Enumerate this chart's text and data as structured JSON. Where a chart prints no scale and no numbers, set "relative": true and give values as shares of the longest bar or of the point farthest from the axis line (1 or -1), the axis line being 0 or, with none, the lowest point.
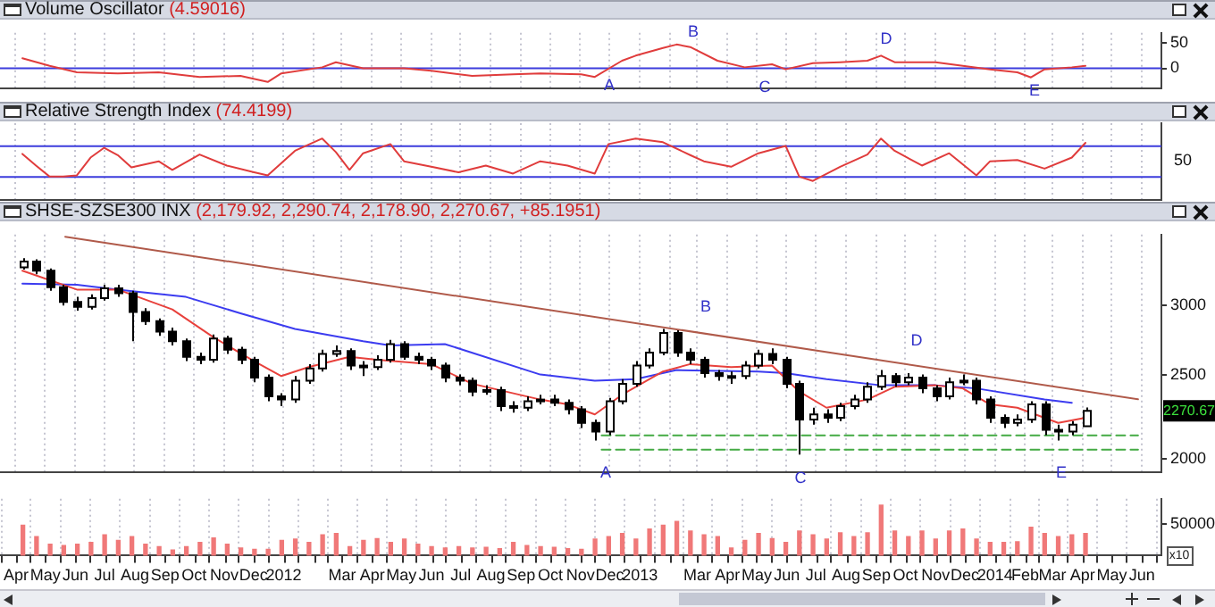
{
  "chart_data": [
    {
      "type": "line",
      "title": "Volume Oscillator",
      "subtitle": "(4.59016)",
      "color": "#e03c3c",
      "x": [
        "2011-04-08",
        "2011-05-06",
        "2011-06-03",
        "2011-07-15",
        "2011-08-26",
        "2011-10-07",
        "2011-11-18",
        "2011-12-16",
        "2011-12-30",
        "2012-02-10",
        "2012-02-24",
        "2012-03-23",
        "2012-05-04",
        "2012-06-01",
        "2012-07-13",
        "2012-08-24",
        "2012-09-21",
        "2012-11-02",
        "2012-11-16",
        "2012-12-14",
        "2012-12-28",
        "2013-01-25",
        "2013-02-08",
        "2013-02-22",
        "2013-03-22",
        "2013-04-19",
        "2013-05-17",
        "2013-05-31",
        "2013-06-28",
        "2013-07-26",
        "2013-08-23",
        "2013-09-06",
        "2013-09-20",
        "2013-11-01",
        "2013-11-29",
        "2013-12-27",
        "2014-01-24",
        "2014-02-07",
        "2014-02-21",
        "2014-03-21",
        "2014-04-04"
      ],
      "values": [
        20,
        5,
        -8,
        -10,
        -8,
        -17,
        -15,
        -27,
        -10,
        2,
        12,
        0,
        0,
        -5,
        -15,
        -12,
        -10,
        -12,
        -17,
        15,
        25,
        40,
        47,
        42,
        15,
        2,
        8,
        -2,
        10,
        12,
        15,
        25,
        12,
        12,
        5,
        -2,
        -8,
        -18,
        -2,
        2,
        5
      ],
      "xlim": [
        "2011-03-16",
        "2014-06-21"
      ],
      "xticks": [
        "2011-04-01",
        "2011-05-01",
        "2011-06-01",
        "2011-07-01",
        "2011-08-01",
        "2011-09-01",
        "2011-10-01",
        "2011-11-01",
        "2011-12-01",
        "2012-01-01",
        "2012-02-01",
        "2012-03-01",
        "2012-04-01",
        "2012-05-01",
        "2012-06-01",
        "2012-07-01",
        "2012-08-01",
        "2012-09-01",
        "2012-10-01",
        "2012-11-01",
        "2012-12-01",
        "2013-01-01",
        "2013-02-01",
        "2013-03-01",
        "2013-04-01",
        "2013-05-01",
        "2013-06-01",
        "2013-07-01",
        "2013-08-01",
        "2013-09-01",
        "2013-10-01",
        "2013-11-01",
        "2013-12-01",
        "2014-01-01",
        "2014-02-01",
        "2014-03-01",
        "2014-04-01",
        "2014-05-01",
        "2014-06-01"
      ],
      "ylim": [
        -40,
        70
      ],
      "yticks": [
        0,
        50
      ],
      "grid": "x",
      "tick_labels": "y",
      "ref_lines": [
        {
          "axis": "y",
          "value": 0,
          "color": "#3c3cdc"
        }
      ],
      "annotations": [
        "A",
        "B",
        "C",
        "D",
        "E"
      ]
    },
    {
      "type": "line",
      "title": "Relative Strength Index",
      "subtitle": "(74.4199)",
      "color": "#e03c3c",
      "relative": true,
      "x": [
        "2011-04-08",
        "2011-04-22",
        "2011-05-06",
        "2011-05-20",
        "2011-06-03",
        "2011-06-17",
        "2011-07-01",
        "2011-07-15",
        "2011-07-29",
        "2011-08-26",
        "2011-09-09",
        "2011-10-07",
        "2011-11-04",
        "2011-12-02",
        "2011-12-16",
        "2012-01-13",
        "2012-02-10",
        "2012-02-24",
        "2012-03-09",
        "2012-03-23",
        "2012-04-20",
        "2012-05-04",
        "2012-06-01",
        "2012-06-29",
        "2012-07-27",
        "2012-08-24",
        "2012-09-21",
        "2012-10-19",
        "2012-11-16",
        "2012-11-30",
        "2012-12-28",
        "2013-01-25",
        "2013-02-22",
        "2013-03-08",
        "2013-04-05",
        "2013-05-03",
        "2013-05-31",
        "2013-06-14",
        "2013-06-28",
        "2013-07-26",
        "2013-08-23",
        "2013-09-06",
        "2013-09-20",
        "2013-10-18",
        "2013-11-15",
        "2013-12-13",
        "2013-12-27",
        "2014-01-24",
        "2014-02-21",
        "2014-03-21",
        "2014-04-04"
      ],
      "values": [
        0.75,
        0.56,
        0.38,
        0.38,
        0.4,
        0.69,
        0.85,
        0.73,
        0.53,
        0.63,
        0.49,
        0.74,
        0.56,
        0.45,
        0.4,
        0.8,
        1,
        0.78,
        0.49,
        0.76,
        0.91,
        0.63,
        0.54,
        0.45,
        0.56,
        0.43,
        0.63,
        0.56,
        0.43,
        0.91,
        1,
        0.94,
        0.73,
        0.63,
        0.54,
        0.76,
        0.88,
        0.38,
        0.31,
        0.54,
        0.74,
        1,
        0.8,
        0.56,
        0.76,
        0.4,
        0.63,
        0.65,
        0.51,
        0.69,
        0.93
      ],
      "xlim": [
        "2011-03-16",
        "2014-06-21"
      ],
      "xticks": [
        "2011-04-01",
        "2011-05-01",
        "2011-06-01",
        "2011-07-01",
        "2011-08-01",
        "2011-09-01",
        "2011-10-01",
        "2011-11-01",
        "2011-12-01",
        "2012-01-01",
        "2012-02-01",
        "2012-03-01",
        "2012-04-01",
        "2012-05-01",
        "2012-06-01",
        "2012-07-01",
        "2012-08-01",
        "2012-09-01",
        "2012-10-01",
        "2012-11-01",
        "2012-12-01",
        "2013-01-01",
        "2013-02-01",
        "2013-03-01",
        "2013-04-01",
        "2013-05-01",
        "2013-06-01",
        "2013-07-01",
        "2013-08-01",
        "2013-09-01",
        "2013-10-01",
        "2013-11-01",
        "2013-12-01",
        "2014-01-01",
        "2014-02-01",
        "2014-03-01",
        "2014-04-01",
        "2014-05-01",
        "2014-06-01"
      ],
      "grid": "x",
      "tick_labels": false,
      "ref_lines": [
        {
          "axis": "y",
          "value": 0.875,
          "color": "#3c3cdc"
        },
        {
          "axis": "y",
          "value": 0.375,
          "color": "#3c3cdc"
        }
      ],
      "annotations": [
        "50"
      ]
    },
    {
      "type": "candlestick",
      "title": "SHSE-SZSE300 INX",
      "subtitle": "(2,179.92, 2,290.74, 2,178.90, 2,270.67, +85.1951)",
      "x": [
        "2011-04-08",
        "2011-04-22",
        "2011-05-06",
        "2011-05-20",
        "2011-06-03",
        "2011-06-17",
        "2011-07-01",
        "2011-07-15",
        "2011-07-29",
        "2011-08-12",
        "2011-08-26",
        "2011-09-09",
        "2011-09-23",
        "2011-10-07",
        "2011-10-21",
        "2011-11-04",
        "2011-11-18",
        "2011-12-02",
        "2011-12-16",
        "2011-12-30",
        "2012-01-13",
        "2012-01-27",
        "2012-02-10",
        "2012-02-24",
        "2012-03-09",
        "2012-03-23",
        "2012-04-06",
        "2012-04-20",
        "2012-05-04",
        "2012-05-18",
        "2012-06-01",
        "2012-06-15",
        "2012-06-29",
        "2012-07-13",
        "2012-07-27",
        "2012-08-10",
        "2012-08-24",
        "2012-09-07",
        "2012-09-21",
        "2012-10-05",
        "2012-10-19",
        "2012-11-02",
        "2012-11-16",
        "2012-11-30",
        "2012-12-14",
        "2012-12-28",
        "2013-01-11",
        "2013-01-25",
        "2013-02-08",
        "2013-02-22",
        "2013-03-08",
        "2013-03-22",
        "2013-04-05",
        "2013-04-19",
        "2013-05-03",
        "2013-05-17",
        "2013-05-31",
        "2013-06-14",
        "2013-06-28",
        "2013-07-12",
        "2013-07-26",
        "2013-08-09",
        "2013-08-23",
        "2013-09-06",
        "2013-09-20",
        "2013-10-04",
        "2013-10-18",
        "2013-11-01",
        "2013-11-15",
        "2013-11-29",
        "2013-12-13",
        "2013-12-27",
        "2014-01-10",
        "2014-01-24",
        "2014-02-07",
        "2014-02-21",
        "2014-03-07",
        "2014-03-21",
        "2014-04-04"
      ],
      "ohlc": [
        [
          3320,
          3400,
          3300,
          3370
        ],
        [
          3370,
          3390,
          3260,
          3290
        ],
        [
          3290,
          3310,
          3120,
          3150
        ],
        [
          3150,
          3170,
          3000,
          3030
        ],
        [
          3030,
          3070,
          2960,
          2990
        ],
        [
          2990,
          3090,
          2970,
          3060
        ],
        [
          3060,
          3170,
          3040,
          3140
        ],
        [
          3140,
          3170,
          3070,
          3100
        ],
        [
          3100,
          3120,
          2730,
          2950
        ],
        [
          2950,
          2980,
          2850,
          2880
        ],
        [
          2880,
          2900,
          2770,
          2800
        ],
        [
          2800,
          2830,
          2700,
          2730
        ],
        [
          2730,
          2750,
          2590,
          2620
        ],
        [
          2620,
          2650,
          2570,
          2600
        ],
        [
          2600,
          2780,
          2580,
          2750
        ],
        [
          2750,
          2770,
          2640,
          2670
        ],
        [
          2670,
          2690,
          2570,
          2600
        ],
        [
          2600,
          2620,
          2450,
          2480
        ],
        [
          2480,
          2500,
          2330,
          2360
        ],
        [
          2360,
          2380,
          2300,
          2340
        ],
        [
          2340,
          2490,
          2320,
          2460
        ],
        [
          2460,
          2570,
          2440,
          2540
        ],
        [
          2540,
          2670,
          2520,
          2640
        ],
        [
          2640,
          2700,
          2620,
          2660
        ],
        [
          2660,
          2680,
          2530,
          2560
        ],
        [
          2560,
          2590,
          2490,
          2550
        ],
        [
          2550,
          2630,
          2530,
          2600
        ],
        [
          2600,
          2740,
          2580,
          2710
        ],
        [
          2710,
          2730,
          2600,
          2620
        ],
        [
          2620,
          2650,
          2570,
          2600
        ],
        [
          2600,
          2620,
          2530,
          2560
        ],
        [
          2560,
          2580,
          2450,
          2480
        ],
        [
          2480,
          2500,
          2430,
          2460
        ],
        [
          2460,
          2480,
          2360,
          2390
        ],
        [
          2390,
          2430,
          2370,
          2400
        ],
        [
          2400,
          2420,
          2270,
          2300
        ],
        [
          2300,
          2330,
          2260,
          2290
        ],
        [
          2290,
          2360,
          2270,
          2330
        ],
        [
          2330,
          2370,
          2310,
          2340
        ],
        [
          2340,
          2370,
          2300,
          2320
        ],
        [
          2320,
          2340,
          2250,
          2280
        ],
        [
          2280,
          2300,
          2170,
          2200
        ],
        [
          2200,
          2220,
          2100,
          2150
        ],
        [
          2150,
          2350,
          2130,
          2330
        ],
        [
          2330,
          2470,
          2310,
          2440
        ],
        [
          2440,
          2590,
          2420,
          2560
        ],
        [
          2560,
          2680,
          2540,
          2650
        ],
        [
          2650,
          2820,
          2630,
          2790
        ],
        [
          2790,
          2810,
          2620,
          2650
        ],
        [
          2650,
          2680,
          2570,
          2600
        ],
        [
          2600,
          2620,
          2480,
          2510
        ],
        [
          2510,
          2530,
          2460,
          2490
        ],
        [
          2490,
          2520,
          2440,
          2490
        ],
        [
          2490,
          2590,
          2470,
          2560
        ],
        [
          2560,
          2670,
          2540,
          2640
        ],
        [
          2640,
          2680,
          2570,
          2600
        ],
        [
          2600,
          2620,
          2410,
          2440
        ],
        [
          2440,
          2460,
          2023,
          2220
        ],
        [
          2220,
          2290,
          2190,
          2250
        ],
        [
          2250,
          2280,
          2200,
          2230
        ],
        [
          2230,
          2320,
          2210,
          2300
        ],
        [
          2300,
          2370,
          2280,
          2340
        ],
        [
          2340,
          2450,
          2320,
          2420
        ],
        [
          2420,
          2530,
          2400,
          2490
        ],
        [
          2490,
          2510,
          2420,
          2450
        ],
        [
          2450,
          2510,
          2430,
          2480
        ],
        [
          2480,
          2500,
          2380,
          2410
        ],
        [
          2410,
          2430,
          2330,
          2360
        ],
        [
          2360,
          2480,
          2340,
          2450
        ],
        [
          2450,
          2500,
          2430,
          2460
        ],
        [
          2460,
          2480,
          2310,
          2340
        ],
        [
          2340,
          2360,
          2200,
          2230
        ],
        [
          2230,
          2250,
          2170,
          2200
        ],
        [
          2200,
          2250,
          2180,
          2220
        ],
        [
          2220,
          2330,
          2200,
          2310
        ],
        [
          2310,
          2330,
          2130,
          2160
        ],
        [
          2160,
          2190,
          2100,
          2150
        ],
        [
          2150,
          2210,
          2130,
          2190
        ],
        [
          2179.92,
          2290.74,
          2178.9,
          2270.67
        ]
      ],
      "colors": [
        "#ffffff",
        "#000000",
        "#000000",
        "#000000",
        "#000000",
        "#ffffff",
        "#ffffff",
        "#000000",
        "#000000",
        "#000000",
        "#000000",
        "#000000",
        "#000000",
        "#000000",
        "#ffffff",
        "#000000",
        "#000000",
        "#000000",
        "#000000",
        "#000000",
        "#ffffff",
        "#ffffff",
        "#ffffff",
        "#ffffff",
        "#000000",
        "#000000",
        "#ffffff",
        "#ffffff",
        "#000000",
        "#000000",
        "#000000",
        "#000000",
        "#000000",
        "#000000",
        "#ffffff",
        "#000000",
        "#000000",
        "#ffffff",
        "#ffffff",
        "#000000",
        "#000000",
        "#000000",
        "#000000",
        "#ffffff",
        "#ffffff",
        "#ffffff",
        "#ffffff",
        "#ffffff",
        "#000000",
        "#000000",
        "#000000",
        "#000000",
        "#ffffff",
        "#ffffff",
        "#ffffff",
        "#000000",
        "#000000",
        "#000000",
        "#ffffff",
        "#000000",
        "#ffffff",
        "#ffffff",
        "#ffffff",
        "#ffffff",
        "#000000",
        "#ffffff",
        "#000000",
        "#000000",
        "#ffffff",
        "#ffffff",
        "#000000",
        "#000000",
        "#000000",
        "#ffffff",
        "#ffffff",
        "#000000",
        "#000000",
        "#ffffff",
        "#ffffff"
      ],
      "series": [
        {
          "type": "line",
          "color": "#e8413c",
          "x": [
            "2011-04-08",
            "2011-06-03",
            "2011-07-15",
            "2011-09-09",
            "2011-10-21",
            "2011-12-02",
            "2011-12-30",
            "2012-01-27",
            "2012-03-09",
            "2012-04-06",
            "2012-06-01",
            "2012-07-13",
            "2012-09-21",
            "2012-10-19",
            "2012-11-16",
            "2012-12-14",
            "2013-01-25",
            "2013-02-22",
            "2013-04-05",
            "2013-05-17",
            "2013-06-14",
            "2013-07-12",
            "2013-08-23",
            "2013-09-20",
            "2013-11-01",
            "2013-11-29",
            "2013-12-27",
            "2014-01-24",
            "2014-03-07",
            "2014-04-04"
          ],
          "values": [
            3290,
            3130,
            3130,
            2970,
            2760,
            2590,
            2490,
            2550,
            2620,
            2600,
            2570,
            2440,
            2340,
            2310,
            2250,
            2370,
            2520,
            2570,
            2550,
            2560,
            2390,
            2290,
            2340,
            2420,
            2430,
            2410,
            2310,
            2290,
            2200,
            2230
          ]
        },
        {
          "type": "line",
          "color": "#3c3cf0",
          "x": [
            "2011-04-08",
            "2011-06-03",
            "2011-07-15",
            "2011-09-23",
            "2011-11-18",
            "2012-01-13",
            "2012-03-23",
            "2012-04-20",
            "2012-06-15",
            "2012-09-21",
            "2012-11-16",
            "2012-12-28",
            "2013-02-08",
            "2013-05-03",
            "2013-05-31",
            "2013-07-12",
            "2013-09-06",
            "2013-11-01",
            "2013-12-13",
            "2014-02-21",
            "2014-03-21"
          ],
          "values": [
            3180,
            3170,
            3130,
            3070,
            2940,
            2820,
            2730,
            2700,
            2710,
            2500,
            2460,
            2470,
            2530,
            2520,
            2510,
            2470,
            2430,
            2430,
            2410,
            2340,
            2320
          ]
        },
        {
          "type": "line",
          "color": "#b05a4a",
          "x": [
            "2011-05-22",
            "2014-05-28"
          ],
          "values": [
            3600,
            2342
          ]
        },
        {
          "type": "line",
          "color": "#44aa44",
          "line_style": "dashed",
          "x": [
            "2012-11-23",
            "2014-05-28"
          ],
          "values": [
            2128,
            2128
          ]
        },
        {
          "type": "line",
          "color": "#44aa44",
          "line_style": "dashed",
          "x": [
            "2012-11-23",
            "2014-05-28"
          ],
          "values": [
            2050,
            2050
          ]
        }
      ],
      "xlim": [
        "2011-03-16",
        "2014-06-21"
      ],
      "xticks": [
        "2011-04-01",
        "2011-05-01",
        "2011-06-01",
        "2011-07-01",
        "2011-08-01",
        "2011-09-01",
        "2011-10-01",
        "2011-11-01",
        "2011-12-01",
        "2012-01-01",
        "2012-02-01",
        "2012-03-01",
        "2012-04-01",
        "2012-05-01",
        "2012-06-01",
        "2012-07-01",
        "2012-08-01",
        "2012-09-01",
        "2012-10-01",
        "2012-11-01",
        "2012-12-01",
        "2013-01-01",
        "2013-02-01",
        "2013-03-01",
        "2013-04-01",
        "2013-05-01",
        "2013-06-01",
        "2013-07-01",
        "2013-08-01",
        "2013-09-01",
        "2013-10-01",
        "2013-11-01",
        "2013-12-01",
        "2014-01-01",
        "2014-02-01",
        "2014-03-01",
        "2014-04-01",
        "2014-05-01",
        "2014-06-01"
      ],
      "ylim": [
        1930,
        3620
      ],
      "yticks": [
        2000,
        2500,
        3000
      ],
      "log": "y",
      "grid": "x",
      "tick_labels": "y",
      "annotations": [
        "A",
        "B",
        "C",
        "D",
        "E",
        {
          "text": "2270.67",
          "y": 2270.67
        }
      ]
    },
    {
      "type": "bar",
      "color": "#f07878",
      "x": [
        "2011-04-08",
        "2011-04-22",
        "2011-05-06",
        "2011-05-20",
        "2011-06-03",
        "2011-06-17",
        "2011-07-01",
        "2011-07-15",
        "2011-07-29",
        "2011-08-12",
        "2011-08-26",
        "2011-09-09",
        "2011-09-23",
        "2011-10-07",
        "2011-10-21",
        "2011-11-04",
        "2011-11-18",
        "2011-12-02",
        "2011-12-16",
        "2011-12-30",
        "2012-01-13",
        "2012-01-27",
        "2012-02-10",
        "2012-02-24",
        "2012-03-09",
        "2012-03-23",
        "2012-04-06",
        "2012-04-20",
        "2012-05-04",
        "2012-05-18",
        "2012-06-01",
        "2012-06-15",
        "2012-06-29",
        "2012-07-13",
        "2012-07-27",
        "2012-08-10",
        "2012-08-24",
        "2012-09-07",
        "2012-09-21",
        "2012-10-05",
        "2012-10-19",
        "2012-11-02",
        "2012-11-16",
        "2012-11-30",
        "2012-12-14",
        "2012-12-28",
        "2013-01-11",
        "2013-01-25",
        "2013-02-08",
        "2013-02-22",
        "2013-03-08",
        "2013-03-22",
        "2013-04-05",
        "2013-04-19",
        "2013-05-03",
        "2013-05-17",
        "2013-05-31",
        "2013-06-14",
        "2013-06-28",
        "2013-07-12",
        "2013-07-26",
        "2013-08-09",
        "2013-08-23",
        "2013-09-06",
        "2013-09-20",
        "2013-10-04",
        "2013-10-18",
        "2013-11-01",
        "2013-11-15",
        "2013-11-29",
        "2013-12-13",
        "2013-12-27",
        "2014-01-10",
        "2014-01-24",
        "2014-02-07",
        "2014-02-21",
        "2014-03-07",
        "2014-03-21",
        "2014-04-04"
      ],
      "values": [
        48000,
        30000,
        18000,
        16000,
        18000,
        21000,
        33000,
        24000,
        30000,
        18000,
        14000,
        9000,
        14000,
        21000,
        28000,
        18000,
        12000,
        10000,
        10000,
        24000,
        26000,
        21000,
        33000,
        35000,
        14000,
        24000,
        27000,
        21000,
        26000,
        18000,
        14000,
        12000,
        14000,
        12000,
        13000,
        11000,
        21000,
        16000,
        14000,
        13000,
        11000,
        10000,
        26000,
        30000,
        35000,
        26000,
        42000,
        48000,
        54000,
        39000,
        33000,
        30000,
        12000,
        24000,
        35000,
        27000,
        21000,
        39000,
        33000,
        26000,
        36000,
        30000,
        36000,
        80000,
        39000,
        30000,
        39000,
        26000,
        39000,
        42000,
        26000,
        21000,
        21000,
        22000,
        45000,
        35000,
        30000,
        33000,
        35000
      ],
      "xlim": [
        "2011-03-16",
        "2014-06-21"
      ],
      "xticks": [
        {
          "value": "2011-04-01",
          "label": "Apr"
        },
        {
          "value": "2011-05-01",
          "label": "May"
        },
        {
          "value": "2011-06-01",
          "label": "Jun"
        },
        {
          "value": "2011-07-01",
          "label": "Jul"
        },
        {
          "value": "2011-08-01",
          "label": "Aug"
        },
        {
          "value": "2011-09-01",
          "label": "Sep"
        },
        {
          "value": "2011-10-01",
          "label": "Oct"
        },
        {
          "value": "2011-11-01",
          "label": "Nov"
        },
        {
          "value": "2011-12-01",
          "label": "Dec"
        },
        {
          "value": "2012-01-01",
          "label": "2012"
        },
        {
          "value": "2012-02-01",
          "label": null
        },
        {
          "value": "2012-03-01",
          "label": "Mar"
        },
        {
          "value": "2012-04-01",
          "label": "Apr"
        },
        {
          "value": "2012-05-01",
          "label": "May"
        },
        {
          "value": "2012-06-01",
          "label": "Jun"
        },
        {
          "value": "2012-07-01",
          "label": "Jul"
        },
        {
          "value": "2012-08-01",
          "label": "Aug"
        },
        {
          "value": "2012-09-01",
          "label": "Sep"
        },
        {
          "value": "2012-10-01",
          "label": "Oct"
        },
        {
          "value": "2012-11-01",
          "label": "Nov"
        },
        {
          "value": "2012-12-01",
          "label": "Dec"
        },
        {
          "value": "2013-01-01",
          "label": "2013"
        },
        {
          "value": "2013-02-01",
          "label": null
        },
        {
          "value": "2013-03-01",
          "label": "Mar"
        },
        {
          "value": "2013-04-01",
          "label": "Apr"
        },
        {
          "value": "2013-05-01",
          "label": "May"
        },
        {
          "value": "2013-06-01",
          "label": "Jun"
        },
        {
          "value": "2013-07-01",
          "label": "Jul"
        },
        {
          "value": "2013-08-01",
          "label": "Aug"
        },
        {
          "value": "2013-09-01",
          "label": "Sep"
        },
        {
          "value": "2013-10-01",
          "label": "Oct"
        },
        {
          "value": "2013-11-01",
          "label": "Nov"
        },
        {
          "value": "2013-12-01",
          "label": "Dec"
        },
        {
          "value": "2014-01-01",
          "label": "2014"
        },
        {
          "value": "2014-02-01",
          "label": "Feb"
        },
        {
          "value": "2014-03-01",
          "label": "Mar"
        },
        {
          "value": "2014-04-01",
          "label": "Apr"
        },
        {
          "value": "2014-05-01",
          "label": "May"
        },
        {
          "value": "2014-06-01",
          "label": "Jun"
        }
      ],
      "ylim": [
        0,
        90000
      ],
      "yticks": [
        50000
      ],
      "grid": "x",
      "annotations": [
        "x10"
      ]
    }
  ]
}
